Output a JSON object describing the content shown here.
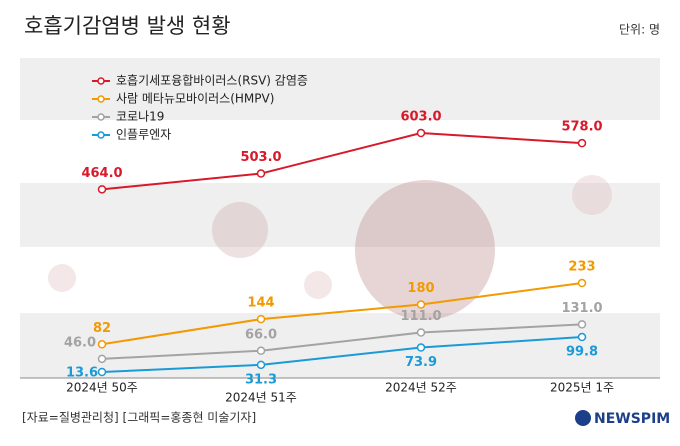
{
  "chart_data": {
    "type": "line",
    "title": "호흡기감염병 발생 현황",
    "unit": "단위: 명",
    "source": "[자료=질병관리청] [그래픽=홍종현 미술기자]",
    "logo": "NEWSPIM",
    "categories": [
      "2024년 50주",
      "2024년 51주",
      "2024년 52주",
      "2025년 1주"
    ],
    "series": [
      {
        "name": "호흡기세포융합바이러스(RSV) 감염증",
        "color": "#d7192a",
        "values": [
          464,
          503,
          603,
          578
        ],
        "value_labels": [
          "464.0",
          "503.0",
          "603.0",
          "578.0"
        ]
      },
      {
        "name": "사람 메타뉴모바이러스(HMPV)",
        "color": "#f29a00",
        "values": [
          82,
          144,
          180,
          233
        ]
      },
      {
        "name": "코로나19",
        "color": "#a3a3a3",
        "values": [
          46,
          66,
          111,
          131
        ],
        "value_labels": [
          "46.0",
          "66.0",
          "111.0",
          "131.0"
        ]
      },
      {
        "name": "인플루엔자",
        "color": "#1a9ad6",
        "values": [
          13.6,
          31.3,
          73.9,
          99.8
        ]
      }
    ]
  }
}
